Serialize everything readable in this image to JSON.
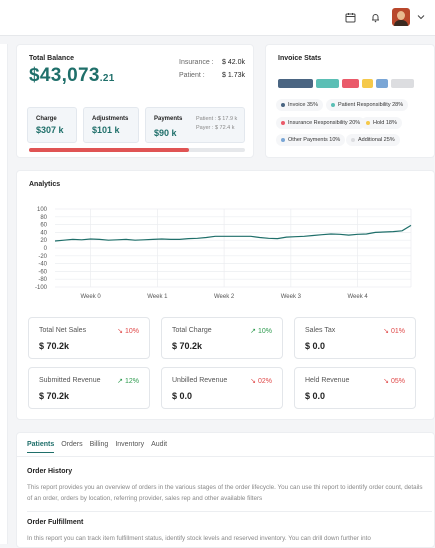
{
  "topbar": {
    "icons": [
      "calendar-icon",
      "bell-icon",
      "chevron-down-icon"
    ]
  },
  "total_balance": {
    "label": "Total Balance",
    "amount_main": "$43,073",
    "amount_cents": ".21",
    "insurance_label": "Insurance :",
    "insurance_value": "$ 42.0k",
    "patient_label": "Patient :",
    "patient_value": "$ 1.73k",
    "charge_label": "Charge",
    "charge_value": "$307 k",
    "adjustments_label": "Adjustments",
    "adjustments_value": "$101 k",
    "payments_label": "Payments",
    "payments_value": "$90 k",
    "payments_patient": "Patient :  $ 17.9 k",
    "payments_payer": "Payer :  $ 72.4 k",
    "progress_fraction": 0.74,
    "progress_color": "#e05454"
  },
  "invoice_stats": {
    "title": "Invoice Stats",
    "bars": [
      {
        "color": "#4a6582",
        "flex": 3
      },
      {
        "color": "#5bbfb5",
        "flex": 2
      },
      {
        "color": "#ea5a6a",
        "flex": 1.5
      },
      {
        "color": "#f5c94a",
        "flex": 1
      },
      {
        "color": "#7aa6d6",
        "flex": 1
      },
      {
        "color": "#dcdde0",
        "flex": 2
      }
    ],
    "legend": [
      {
        "label": "Invoice 35%",
        "color": "#4a6582"
      },
      {
        "label": "Patient Responsibility 28%",
        "color": "#5bbfb5"
      },
      {
        "label": "Insurance Responsibility 20%",
        "color": "#ea5a6a"
      },
      {
        "label": "Hold 18%",
        "color": "#f5c94a"
      },
      {
        "label": "Other Payments 10%",
        "color": "#7aa6d6"
      },
      {
        "label": "Additional 25%",
        "color": "#dcdde0"
      }
    ]
  },
  "analytics": {
    "title": "Analytics",
    "stats": [
      {
        "label": "Total Net Sales",
        "change": "10%",
        "direction": "down",
        "value": "$ 70.2k"
      },
      {
        "label": "Total Charge",
        "change": "10%",
        "direction": "up",
        "value": "$ 70.2k"
      },
      {
        "label": "Sales Tax",
        "change": "01%",
        "direction": "down",
        "value": "$ 0.0"
      },
      {
        "label": "Submitted Revenue",
        "change": "12%",
        "direction": "up",
        "value": "$ 70.2k"
      },
      {
        "label": "Unbilled Revenue",
        "change": "02%",
        "direction": "down",
        "value": "$ 0.0"
      },
      {
        "label": "Held Revenue",
        "change": "05%",
        "direction": "down",
        "value": "$ 0.0"
      }
    ]
  },
  "chart_data": {
    "type": "line",
    "title": "",
    "xlabel": "",
    "ylabel": "",
    "ylim": [
      -100,
      100
    ],
    "yticks": [
      100,
      80,
      60,
      40,
      20,
      0,
      -20,
      -40,
      -60,
      -80,
      -100
    ],
    "xticks": [
      "Week 0",
      "Week 1",
      "Week 2",
      "Week 3",
      "Week 4"
    ],
    "xtick_positions": [
      0.8,
      2.3,
      3.8,
      5.3,
      6.8
    ],
    "xlim": [
      0,
      8
    ],
    "grid": true,
    "color": "#1f6f6a",
    "series": [
      {
        "x": [
          0,
          0.2,
          0.4,
          0.6,
          0.8,
          1.0,
          1.2,
          1.4,
          1.6,
          1.8,
          2.0,
          2.2,
          2.4,
          2.6,
          2.8,
          3.0,
          3.2,
          3.4,
          3.6,
          3.8,
          4.0,
          4.2,
          4.4,
          4.6,
          4.8,
          5.0,
          5.2,
          5.4,
          5.6,
          5.8,
          6.0,
          6.2,
          6.4,
          6.6,
          6.8,
          7.0,
          7.2,
          7.4,
          7.6,
          7.8,
          8.0
        ],
        "y": [
          18,
          20,
          22,
          21,
          23,
          22,
          20,
          21,
          22,
          20,
          21,
          22,
          23,
          22,
          22,
          24,
          25,
          27,
          30,
          30,
          30,
          30,
          30,
          27,
          25,
          24,
          28,
          29,
          30,
          32,
          34,
          36,
          35,
          33,
          35,
          36,
          40,
          41,
          42,
          44,
          58
        ]
      }
    ]
  },
  "orders": {
    "tabs": [
      "Patients",
      "Orders",
      "Billing",
      "Inventory",
      "Audit"
    ],
    "active_tab": 0,
    "sections": [
      {
        "title": "Order History",
        "text": "This report provides you an overview of orders in the various stages of the order lifecycle. You can use thi report to identify order count, details of an order, orders by location, referring provider, sales rep and other available filters"
      },
      {
        "title": "Order Fulfillment",
        "text": "In this report you can track item fulfillment status, identify stock levels and reserved inventory. You can drill down further into"
      }
    ]
  }
}
